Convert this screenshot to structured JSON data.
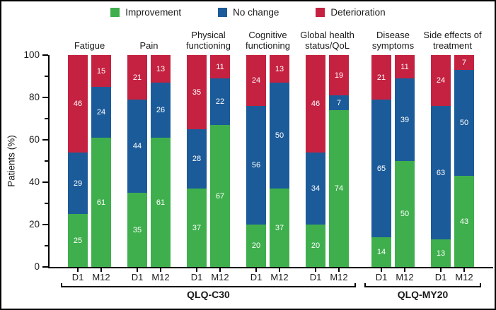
{
  "legend": {
    "items": [
      {
        "key": "improvement",
        "label": "Improvement",
        "color": "#3faf4d"
      },
      {
        "key": "no_change",
        "label": "No change",
        "color": "#1c5b99"
      },
      {
        "key": "deterioration",
        "label": "Deterioration",
        "color": "#c42240"
      }
    ]
  },
  "chart_data": {
    "type": "bar",
    "stacked": true,
    "orientation": "vertical",
    "ylabel": "Patients (%)",
    "ylim": [
      0,
      100
    ],
    "yticks_major": [
      0,
      20,
      40,
      60,
      80,
      100
    ],
    "yticks_minor": [
      10,
      30,
      50,
      70,
      90
    ],
    "grid": false,
    "legend_position": "top",
    "series_order": [
      "improvement",
      "no_change",
      "deterioration"
    ],
    "series_colors": {
      "improvement": "#3faf4d",
      "no_change": "#1c5b99",
      "deterioration": "#c42240"
    },
    "timepoints": [
      "D1",
      "M12"
    ],
    "groups": [
      {
        "name": "Fatigue",
        "bars": [
          {
            "timepoint": "D1",
            "improvement": 25,
            "no_change": 29,
            "deterioration": 46
          },
          {
            "timepoint": "M12",
            "improvement": 61,
            "no_change": 24,
            "deterioration": 15
          }
        ]
      },
      {
        "name": "Pain",
        "bars": [
          {
            "timepoint": "D1",
            "improvement": 35,
            "no_change": 44,
            "deterioration": 21
          },
          {
            "timepoint": "M12",
            "improvement": 61,
            "no_change": 26,
            "deterioration": 13
          }
        ]
      },
      {
        "name": "Physical functioning",
        "bars": [
          {
            "timepoint": "D1",
            "improvement": 37,
            "no_change": 28,
            "deterioration": 35
          },
          {
            "timepoint": "M12",
            "improvement": 67,
            "no_change": 22,
            "deterioration": 11
          }
        ]
      },
      {
        "name": "Cognitive functioning",
        "bars": [
          {
            "timepoint": "D1",
            "improvement": 20,
            "no_change": 56,
            "deterioration": 24
          },
          {
            "timepoint": "M12",
            "improvement": 37,
            "no_change": 50,
            "deterioration": 13
          }
        ]
      },
      {
        "name": "Global health status/QoL",
        "bars": [
          {
            "timepoint": "D1",
            "improvement": 20,
            "no_change": 34,
            "deterioration": 46
          },
          {
            "timepoint": "M12",
            "improvement": 74,
            "no_change": 7,
            "deterioration": 19
          }
        ]
      },
      {
        "name": "Disease symptoms",
        "bars": [
          {
            "timepoint": "D1",
            "improvement": 14,
            "no_change": 65,
            "deterioration": 21
          },
          {
            "timepoint": "M12",
            "improvement": 50,
            "no_change": 39,
            "deterioration": 11
          }
        ]
      },
      {
        "name": "Side effects of treatment",
        "bars": [
          {
            "timepoint": "D1",
            "improvement": 13,
            "no_change": 63,
            "deterioration": 24
          },
          {
            "timepoint": "M12",
            "improvement": 43,
            "no_change": 50,
            "deterioration": 7
          }
        ]
      }
    ],
    "scale_brackets": [
      {
        "label": "QLQ-C30",
        "group_start": 0,
        "group_end": 4
      },
      {
        "label": "QLQ-MY20",
        "group_start": 5,
        "group_end": 6
      }
    ]
  }
}
